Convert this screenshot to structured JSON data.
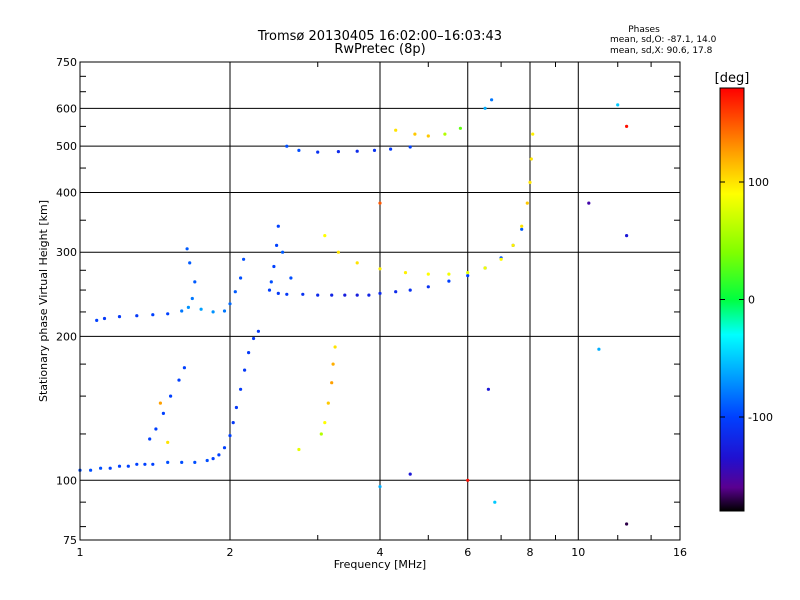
{
  "chart_data": {
    "type": "scatter",
    "title_line1": "Tromsø 20130405 16:02:00–16:03:43",
    "title_line2": "RwPretec (8p)",
    "stats": {
      "heading": "Phases",
      "line_o": "mean, sd,O: -87.1, 14.0",
      "line_x": "mean, sd,X:  90.6, 17.8"
    },
    "xlabel": "Frequency [MHz]",
    "ylabel": "Stationary phase Virtual Height [km]",
    "x_scale": "log",
    "y_scale": "log",
    "xlim": [
      1,
      16
    ],
    "ylim": [
      75,
      750
    ],
    "x_ticks": [
      1,
      2,
      4,
      6,
      8,
      10,
      16
    ],
    "x_tick_labels": [
      "1",
      "2",
      "4",
      "6",
      "8",
      "10",
      "16"
    ],
    "y_ticks": [
      75,
      100,
      200,
      300,
      400,
      500,
      600,
      750
    ],
    "y_tick_labels": [
      "75",
      "100",
      "200",
      "300",
      "400",
      "500",
      "600",
      "750"
    ],
    "grid": true,
    "colorbar": {
      "label": "[deg]",
      "min": -180,
      "max": 180,
      "ticks": [
        100,
        0,
        -100
      ],
      "tick_labels": [
        "100",
        "0",
        "-100"
      ],
      "colormap": [
        {
          "v": -180,
          "c": "#000000"
        },
        {
          "v": -160,
          "c": "#5a0090"
        },
        {
          "v": -135,
          "c": "#2010d0"
        },
        {
          "v": -100,
          "c": "#0040ff"
        },
        {
          "v": -65,
          "c": "#00a0ff"
        },
        {
          "v": -30,
          "c": "#00ffff"
        },
        {
          "v": 0,
          "c": "#00ff40"
        },
        {
          "v": 40,
          "c": "#80ff00"
        },
        {
          "v": 90,
          "c": "#ffff00"
        },
        {
          "v": 125,
          "c": "#ffa000"
        },
        {
          "v": 180,
          "c": "#ff0000"
        }
      ]
    },
    "series": [
      {
        "values": [
          {
            "x": 1.0,
            "y": 105,
            "p": -95
          },
          {
            "x": 1.05,
            "y": 105,
            "p": -95
          },
          {
            "x": 1.1,
            "y": 106,
            "p": -95
          },
          {
            "x": 1.15,
            "y": 106,
            "p": -100
          },
          {
            "x": 1.2,
            "y": 107,
            "p": -100
          },
          {
            "x": 1.25,
            "y": 107,
            "p": -100
          },
          {
            "x": 1.3,
            "y": 108,
            "p": -100
          },
          {
            "x": 1.35,
            "y": 108,
            "p": -100
          },
          {
            "x": 1.4,
            "y": 108,
            "p": -100
          },
          {
            "x": 1.5,
            "y": 109,
            "p": -95
          },
          {
            "x": 1.6,
            "y": 109,
            "p": -95
          },
          {
            "x": 1.7,
            "y": 109,
            "p": -95
          },
          {
            "x": 1.8,
            "y": 110,
            "p": -95
          },
          {
            "x": 1.85,
            "y": 111,
            "p": -100
          },
          {
            "x": 1.9,
            "y": 113,
            "p": -100
          },
          {
            "x": 1.95,
            "y": 117,
            "p": -100
          },
          {
            "x": 2.0,
            "y": 124,
            "p": -100
          },
          {
            "x": 2.03,
            "y": 132,
            "p": -105
          },
          {
            "x": 2.06,
            "y": 142,
            "p": -105
          },
          {
            "x": 2.1,
            "y": 155,
            "p": -105
          },
          {
            "x": 2.14,
            "y": 170,
            "p": -105
          },
          {
            "x": 2.18,
            "y": 185,
            "p": -105
          },
          {
            "x": 2.23,
            "y": 198,
            "p": -105
          },
          {
            "x": 2.28,
            "y": 205,
            "p": -105
          },
          {
            "x": 1.38,
            "y": 122,
            "p": -100
          },
          {
            "x": 1.42,
            "y": 128,
            "p": -100
          },
          {
            "x": 1.47,
            "y": 138,
            "p": -100
          },
          {
            "x": 1.52,
            "y": 150,
            "p": -100
          },
          {
            "x": 1.58,
            "y": 162,
            "p": -100
          },
          {
            "x": 1.62,
            "y": 172,
            "p": -100
          },
          {
            "x": 1.45,
            "y": 145,
            "p": 125
          },
          {
            "x": 1.5,
            "y": 120,
            "p": 100
          },
          {
            "x": 1.2,
            "y": 220,
            "p": -105
          },
          {
            "x": 1.3,
            "y": 221,
            "p": -105
          },
          {
            "x": 1.4,
            "y": 222,
            "p": -100
          },
          {
            "x": 1.5,
            "y": 223,
            "p": -100
          },
          {
            "x": 1.6,
            "y": 226,
            "p": -80
          },
          {
            "x": 1.65,
            "y": 230,
            "p": -70
          },
          {
            "x": 1.68,
            "y": 240,
            "p": -80
          },
          {
            "x": 1.7,
            "y": 260,
            "p": -90
          },
          {
            "x": 1.66,
            "y": 285,
            "p": -90
          },
          {
            "x": 1.64,
            "y": 305,
            "p": -90
          },
          {
            "x": 1.75,
            "y": 228,
            "p": -65
          },
          {
            "x": 1.85,
            "y": 225,
            "p": -70
          },
          {
            "x": 1.95,
            "y": 226,
            "p": -80
          },
          {
            "x": 2.0,
            "y": 234,
            "p": -85
          },
          {
            "x": 2.05,
            "y": 248,
            "p": -90
          },
          {
            "x": 2.1,
            "y": 265,
            "p": -95
          },
          {
            "x": 2.13,
            "y": 290,
            "p": -95
          },
          {
            "x": 1.08,
            "y": 216,
            "p": -100
          },
          {
            "x": 1.12,
            "y": 218,
            "p": -105
          },
          {
            "x": 2.4,
            "y": 250,
            "p": -100
          },
          {
            "x": 2.5,
            "y": 246,
            "p": -105
          },
          {
            "x": 2.6,
            "y": 245,
            "p": -105
          },
          {
            "x": 2.8,
            "y": 245,
            "p": -110
          },
          {
            "x": 3.0,
            "y": 244,
            "p": -115
          },
          {
            "x": 3.2,
            "y": 244,
            "p": -120
          },
          {
            "x": 3.4,
            "y": 244,
            "p": -125
          },
          {
            "x": 3.6,
            "y": 244,
            "p": -125
          },
          {
            "x": 3.8,
            "y": 244,
            "p": -120
          },
          {
            "x": 4.0,
            "y": 246,
            "p": -115
          },
          {
            "x": 4.3,
            "y": 248,
            "p": -115
          },
          {
            "x": 4.6,
            "y": 250,
            "p": -110
          },
          {
            "x": 5.0,
            "y": 254,
            "p": -110
          },
          {
            "x": 5.5,
            "y": 261,
            "p": -100
          },
          {
            "x": 6.0,
            "y": 268,
            "p": -100
          },
          {
            "x": 6.5,
            "y": 278,
            "p": -100
          },
          {
            "x": 7.0,
            "y": 292,
            "p": -95
          },
          {
            "x": 7.4,
            "y": 310,
            "p": -95
          },
          {
            "x": 7.7,
            "y": 335,
            "p": -90
          },
          {
            "x": 2.45,
            "y": 280,
            "p": -100
          },
          {
            "x": 2.48,
            "y": 310,
            "p": -100
          },
          {
            "x": 2.5,
            "y": 340,
            "p": -100
          },
          {
            "x": 2.42,
            "y": 260,
            "p": -95
          },
          {
            "x": 2.55,
            "y": 300,
            "p": -90
          },
          {
            "x": 2.65,
            "y": 265,
            "p": -95
          },
          {
            "x": 3.1,
            "y": 325,
            "p": 90
          },
          {
            "x": 3.3,
            "y": 300,
            "p": 100
          },
          {
            "x": 3.6,
            "y": 285,
            "p": 100
          },
          {
            "x": 4.0,
            "y": 277,
            "p": 95
          },
          {
            "x": 4.5,
            "y": 272,
            "p": 95
          },
          {
            "x": 5.0,
            "y": 270,
            "p": 90
          },
          {
            "x": 5.5,
            "y": 270,
            "p": 85
          },
          {
            "x": 6.0,
            "y": 272,
            "p": 80
          },
          {
            "x": 6.5,
            "y": 278,
            "p": 85
          },
          {
            "x": 7.0,
            "y": 290,
            "p": 90
          },
          {
            "x": 7.4,
            "y": 310,
            "p": 95
          },
          {
            "x": 7.7,
            "y": 340,
            "p": 100
          },
          {
            "x": 7.9,
            "y": 380,
            "p": 110
          },
          {
            "x": 8.0,
            "y": 420,
            "p": 100
          },
          {
            "x": 8.05,
            "y": 470,
            "p": 100
          },
          {
            "x": 8.1,
            "y": 530,
            "p": 95
          },
          {
            "x": 2.6,
            "y": 500,
            "p": -95
          },
          {
            "x": 2.75,
            "y": 490,
            "p": -95
          },
          {
            "x": 3.0,
            "y": 486,
            "p": -110
          },
          {
            "x": 3.3,
            "y": 487,
            "p": -115
          },
          {
            "x": 3.6,
            "y": 488,
            "p": -115
          },
          {
            "x": 3.9,
            "y": 490,
            "p": -110
          },
          {
            "x": 4.2,
            "y": 493,
            "p": -105
          },
          {
            "x": 4.6,
            "y": 498,
            "p": -100
          },
          {
            "x": 4.3,
            "y": 540,
            "p": 100
          },
          {
            "x": 4.7,
            "y": 530,
            "p": 110
          },
          {
            "x": 5.0,
            "y": 525,
            "p": 110
          },
          {
            "x": 5.4,
            "y": 530,
            "p": 60
          },
          {
            "x": 5.8,
            "y": 545,
            "p": 30
          },
          {
            "x": 6.5,
            "y": 600,
            "p": -60
          },
          {
            "x": 6.7,
            "y": 625,
            "p": -80
          },
          {
            "x": 3.2,
            "y": 160,
            "p": 125
          },
          {
            "x": 3.22,
            "y": 175,
            "p": 120
          },
          {
            "x": 3.25,
            "y": 190,
            "p": 100
          },
          {
            "x": 3.15,
            "y": 145,
            "p": 110
          },
          {
            "x": 3.1,
            "y": 132,
            "p": 90
          },
          {
            "x": 3.05,
            "y": 125,
            "p": 60
          },
          {
            "x": 2.75,
            "y": 116,
            "p": 80
          },
          {
            "x": 12.5,
            "y": 325,
            "p": -130
          },
          {
            "x": 12.5,
            "y": 550,
            "p": 175
          },
          {
            "x": 12.0,
            "y": 610,
            "p": -50
          },
          {
            "x": 11.0,
            "y": 188,
            "p": -60
          },
          {
            "x": 6.6,
            "y": 155,
            "p": -130
          },
          {
            "x": 6.0,
            "y": 100,
            "p": 175
          },
          {
            "x": 6.8,
            "y": 90,
            "p": -50
          },
          {
            "x": 4.0,
            "y": 97,
            "p": -60
          },
          {
            "x": 4.6,
            "y": 103,
            "p": -130
          },
          {
            "x": 10.5,
            "y": 380,
            "p": -150
          },
          {
            "x": 12.5,
            "y": 81,
            "p": -170
          },
          {
            "x": 4.0,
            "y": 380,
            "p": 150
          }
        ]
      }
    ]
  }
}
